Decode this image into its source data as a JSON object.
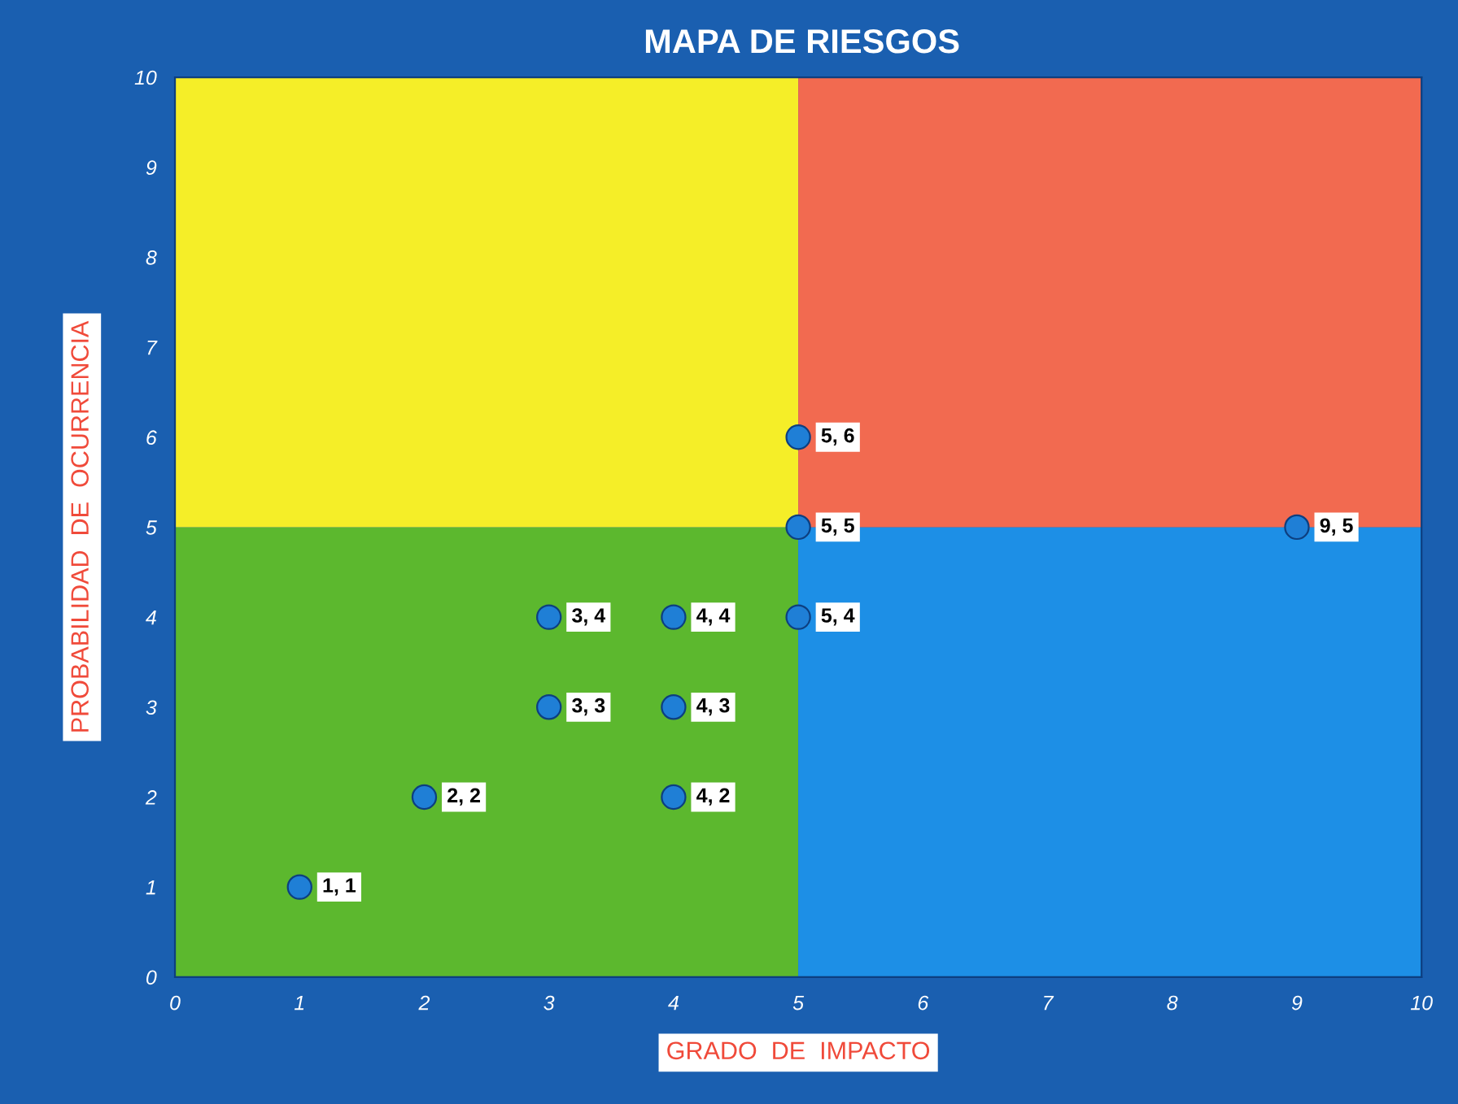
{
  "chart_data": {
    "type": "scatter",
    "title": "MAPA DE RIESGOS",
    "xlabel": "GRADO  DE  IMPACTO",
    "ylabel": "PROBABILIDAD  DE  OCURRENCIA",
    "xlim": [
      0,
      10
    ],
    "ylim": [
      0,
      10
    ],
    "xticks": [
      0,
      1,
      2,
      3,
      4,
      5,
      6,
      7,
      8,
      9,
      10
    ],
    "yticks": [
      0,
      1,
      2,
      3,
      4,
      5,
      6,
      7,
      8,
      9,
      10
    ],
    "grid": false,
    "marker": "circle",
    "series": [
      {
        "color": "#1f7fd6",
        "x": [
          1,
          2,
          3,
          3,
          4,
          4,
          4,
          5,
          5,
          5,
          9
        ],
        "values": [
          1,
          2,
          3,
          4,
          2,
          3,
          4,
          4,
          5,
          6,
          5
        ],
        "value_labels": [
          "1, 1",
          "2, 2",
          "3, 3",
          "3, 4",
          "4, 2",
          "4, 3",
          "4, 4",
          "5, 4",
          "5, 5",
          "5, 6",
          "9, 5"
        ]
      }
    ]
  }
}
